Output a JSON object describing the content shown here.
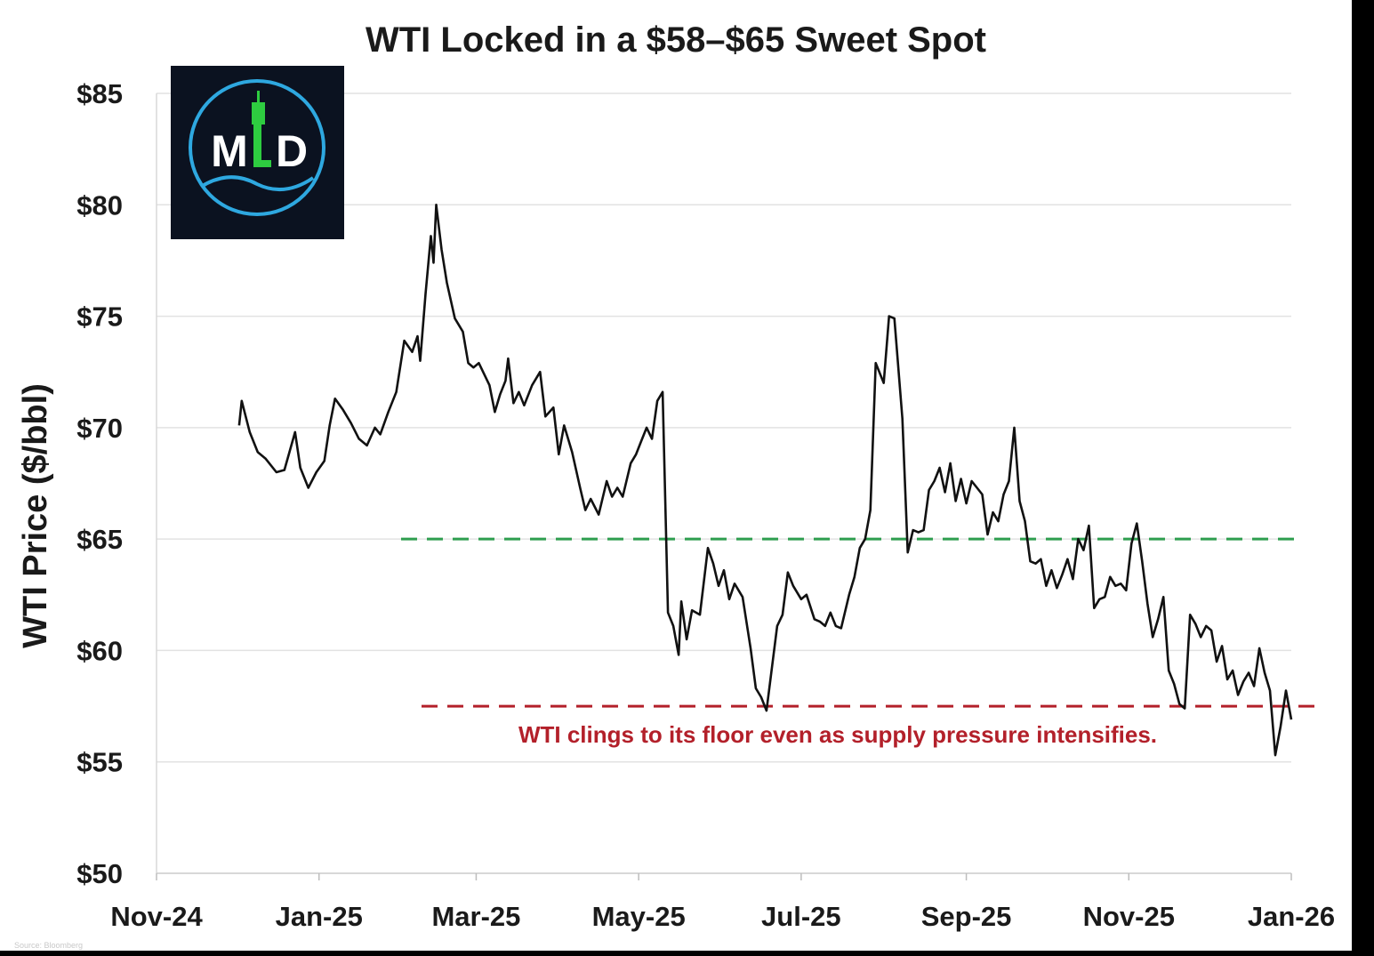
{
  "chart_data": {
    "type": "line",
    "title": "WTI Locked in a $58–$65 Sweet Spot",
    "ylabel": "WTI Price ($/bbl)",
    "xlabel": "",
    "ylim": [
      50,
      85
    ],
    "xlim": [
      "2024-11-01",
      "2026-01-01"
    ],
    "y_ticks": [
      "$50",
      "$55",
      "$60",
      "$65",
      "$70",
      "$75",
      "$80",
      "$85"
    ],
    "x_ticks": [
      "Nov-24",
      "Jan-25",
      "Mar-25",
      "May-25",
      "Jul-25",
      "Sep-25",
      "Nov-25",
      "Jan-26"
    ],
    "grid": "horizontal",
    "series": [
      {
        "color": "#111111",
        "points": [
          [
            "2024-12-02",
            70.1
          ],
          [
            "2024-12-03",
            71.2
          ],
          [
            "2024-12-06",
            69.8
          ],
          [
            "2024-12-09",
            68.9
          ],
          [
            "2024-12-12",
            68.6
          ],
          [
            "2024-12-16",
            68.0
          ],
          [
            "2024-12-19",
            68.1
          ],
          [
            "2024-12-23",
            69.8
          ],
          [
            "2024-12-25",
            68.2
          ],
          [
            "2024-12-28",
            67.3
          ],
          [
            "2024-12-31",
            68.0
          ],
          [
            "2025-01-03",
            68.5
          ],
          [
            "2025-01-05",
            70.1
          ],
          [
            "2025-01-07",
            71.3
          ],
          [
            "2025-01-10",
            70.8
          ],
          [
            "2025-01-13",
            70.2
          ],
          [
            "2025-01-16",
            69.5
          ],
          [
            "2025-01-19",
            69.2
          ],
          [
            "2025-01-22",
            70.0
          ],
          [
            "2025-01-24",
            69.7
          ],
          [
            "2025-01-27",
            70.7
          ],
          [
            "2025-01-30",
            71.6
          ],
          [
            "2025-02-02",
            73.9
          ],
          [
            "2025-02-05",
            73.4
          ],
          [
            "2025-02-07",
            74.1
          ],
          [
            "2025-02-08",
            73.0
          ],
          [
            "2025-02-10",
            76.0
          ],
          [
            "2025-02-12",
            78.6
          ],
          [
            "2025-02-13",
            77.4
          ],
          [
            "2025-02-14",
            80.0
          ],
          [
            "2025-02-16",
            78.0
          ],
          [
            "2025-02-18",
            76.5
          ],
          [
            "2025-02-21",
            74.9
          ],
          [
            "2025-02-24",
            74.3
          ],
          [
            "2025-02-26",
            72.9
          ],
          [
            "2025-02-28",
            72.7
          ],
          [
            "2025-03-02",
            72.9
          ],
          [
            "2025-03-04",
            72.4
          ],
          [
            "2025-03-06",
            71.9
          ],
          [
            "2025-03-08",
            70.7
          ],
          [
            "2025-03-10",
            71.5
          ],
          [
            "2025-03-12",
            72.1
          ],
          [
            "2025-03-13",
            73.1
          ],
          [
            "2025-03-15",
            71.1
          ],
          [
            "2025-03-17",
            71.6
          ],
          [
            "2025-03-19",
            71.0
          ],
          [
            "2025-03-22",
            71.9
          ],
          [
            "2025-03-25",
            72.5
          ],
          [
            "2025-03-27",
            70.5
          ],
          [
            "2025-03-30",
            70.9
          ],
          [
            "2025-04-01",
            68.8
          ],
          [
            "2025-04-03",
            70.1
          ],
          [
            "2025-04-06",
            68.9
          ],
          [
            "2025-04-09",
            67.3
          ],
          [
            "2025-04-11",
            66.3
          ],
          [
            "2025-04-13",
            66.8
          ],
          [
            "2025-04-16",
            66.1
          ],
          [
            "2025-04-19",
            67.6
          ],
          [
            "2025-04-21",
            66.9
          ],
          [
            "2025-04-23",
            67.3
          ],
          [
            "2025-04-25",
            66.9
          ],
          [
            "2025-04-28",
            68.4
          ],
          [
            "2025-04-30",
            68.8
          ],
          [
            "2025-05-02",
            69.4
          ],
          [
            "2025-05-04",
            70.0
          ],
          [
            "2025-05-06",
            69.5
          ],
          [
            "2025-05-08",
            71.2
          ],
          [
            "2025-05-10",
            71.6
          ],
          [
            "2025-05-12",
            61.7
          ],
          [
            "2025-05-14",
            61.1
          ],
          [
            "2025-05-16",
            59.8
          ],
          [
            "2025-05-17",
            62.2
          ],
          [
            "2025-05-19",
            60.5
          ],
          [
            "2025-05-21",
            61.8
          ],
          [
            "2025-05-24",
            61.6
          ],
          [
            "2025-05-27",
            64.6
          ],
          [
            "2025-05-29",
            63.9
          ],
          [
            "2025-05-31",
            62.9
          ],
          [
            "2025-06-02",
            63.6
          ],
          [
            "2025-06-04",
            62.3
          ],
          [
            "2025-06-06",
            63.0
          ],
          [
            "2025-06-09",
            62.4
          ],
          [
            "2025-06-12",
            60.1
          ],
          [
            "2025-06-14",
            58.3
          ],
          [
            "2025-06-16",
            57.9
          ],
          [
            "2025-06-18",
            57.3
          ],
          [
            "2025-06-20",
            59.2
          ],
          [
            "2025-06-22",
            61.1
          ],
          [
            "2025-06-24",
            61.6
          ],
          [
            "2025-06-26",
            63.5
          ],
          [
            "2025-06-28",
            62.9
          ],
          [
            "2025-07-01",
            62.3
          ],
          [
            "2025-07-03",
            62.5
          ],
          [
            "2025-07-06",
            61.4
          ],
          [
            "2025-07-08",
            61.3
          ],
          [
            "2025-07-10",
            61.1
          ],
          [
            "2025-07-12",
            61.7
          ],
          [
            "2025-07-14",
            61.1
          ],
          [
            "2025-07-16",
            61.0
          ],
          [
            "2025-07-19",
            62.5
          ],
          [
            "2025-07-21",
            63.3
          ],
          [
            "2025-07-23",
            64.6
          ],
          [
            "2025-07-25",
            65.0
          ],
          [
            "2025-07-27",
            66.3
          ],
          [
            "2025-07-29",
            72.9
          ],
          [
            "2025-08-01",
            72.0
          ],
          [
            "2025-08-03",
            75.0
          ],
          [
            "2025-08-05",
            74.9
          ],
          [
            "2025-08-08",
            70.4
          ],
          [
            "2025-08-10",
            64.4
          ],
          [
            "2025-08-12",
            65.4
          ],
          [
            "2025-08-14",
            65.3
          ],
          [
            "2025-08-16",
            65.4
          ],
          [
            "2025-08-18",
            67.2
          ],
          [
            "2025-08-20",
            67.6
          ],
          [
            "2025-08-22",
            68.2
          ],
          [
            "2025-08-24",
            67.1
          ],
          [
            "2025-08-26",
            68.4
          ],
          [
            "2025-08-28",
            66.7
          ],
          [
            "2025-08-30",
            67.7
          ],
          [
            "2025-09-01",
            66.6
          ],
          [
            "2025-09-03",
            67.6
          ],
          [
            "2025-09-05",
            67.3
          ],
          [
            "2025-09-07",
            67.0
          ],
          [
            "2025-09-09",
            65.2
          ],
          [
            "2025-09-11",
            66.2
          ],
          [
            "2025-09-13",
            65.8
          ],
          [
            "2025-09-15",
            67.0
          ],
          [
            "2025-09-17",
            67.6
          ],
          [
            "2025-09-19",
            70.0
          ],
          [
            "2025-09-21",
            66.7
          ],
          [
            "2025-09-23",
            65.8
          ],
          [
            "2025-09-25",
            64.0
          ],
          [
            "2025-09-27",
            63.9
          ],
          [
            "2025-09-29",
            64.1
          ],
          [
            "2025-10-01",
            62.9
          ],
          [
            "2025-10-03",
            63.6
          ],
          [
            "2025-10-05",
            62.8
          ],
          [
            "2025-10-07",
            63.4
          ],
          [
            "2025-10-09",
            64.1
          ],
          [
            "2025-10-11",
            63.2
          ],
          [
            "2025-10-13",
            65.0
          ],
          [
            "2025-10-15",
            64.5
          ],
          [
            "2025-10-17",
            65.6
          ],
          [
            "2025-10-19",
            61.9
          ],
          [
            "2025-10-21",
            62.3
          ],
          [
            "2025-10-23",
            62.4
          ],
          [
            "2025-10-25",
            63.3
          ],
          [
            "2025-10-27",
            62.9
          ],
          [
            "2025-10-29",
            63.0
          ],
          [
            "2025-10-31",
            62.7
          ],
          [
            "2025-11-02",
            64.8
          ],
          [
            "2025-11-04",
            65.7
          ],
          [
            "2025-11-06",
            64.0
          ],
          [
            "2025-11-08",
            62.1
          ],
          [
            "2025-11-10",
            60.6
          ],
          [
            "2025-11-12",
            61.4
          ],
          [
            "2025-11-14",
            62.4
          ],
          [
            "2025-11-16",
            59.1
          ],
          [
            "2025-11-18",
            58.5
          ],
          [
            "2025-11-20",
            57.6
          ],
          [
            "2025-11-22",
            57.4
          ],
          [
            "2025-11-24",
            61.6
          ],
          [
            "2025-11-26",
            61.2
          ],
          [
            "2025-11-28",
            60.6
          ],
          [
            "2025-11-30",
            61.1
          ],
          [
            "2025-12-02",
            60.9
          ],
          [
            "2025-12-04",
            59.5
          ],
          [
            "2025-12-06",
            60.2
          ],
          [
            "2025-12-08",
            58.7
          ],
          [
            "2025-12-10",
            59.1
          ],
          [
            "2025-12-12",
            58.0
          ],
          [
            "2025-12-14",
            58.6
          ],
          [
            "2025-12-16",
            59.0
          ],
          [
            "2025-12-18",
            58.4
          ],
          [
            "2025-12-20",
            60.1
          ],
          [
            "2025-12-22",
            59.0
          ],
          [
            "2025-12-24",
            58.2
          ],
          [
            "2025-12-26",
            55.3
          ],
          [
            "2025-12-28",
            56.6
          ],
          [
            "2025-12-30",
            58.2
          ],
          [
            "2026-01-01",
            56.9
          ]
        ]
      }
    ],
    "reference_lines": [
      {
        "y": 65,
        "color": "#2e9e4f",
        "style": "dashed"
      },
      {
        "y": 57.5,
        "color": "#b3202a",
        "style": "dashed"
      }
    ],
    "annotations": [
      {
        "text": "WTI clings to its floor even as supply pressure intensifies.",
        "color": "#b3202a"
      }
    ],
    "source_note": "Source: Bloomberg"
  },
  "logo": {
    "text_left": "M",
    "text_right": "D",
    "ring_color": "#2ea8e0",
    "background": "#0b1220",
    "accent_color": "#2ecc40"
  }
}
